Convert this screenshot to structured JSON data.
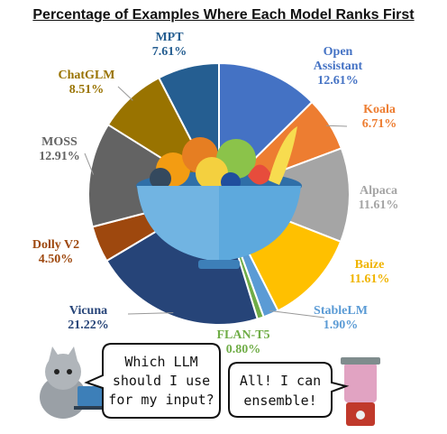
{
  "chart_data": {
    "type": "pie",
    "title": "Percentage of Examples Where Each Model Ranks First",
    "slices": [
      {
        "label": "Open Assistant",
        "label_lines": [
          "Open",
          "Assistant"
        ],
        "value": 12.61,
        "value_text": "12.61%",
        "color": "#4472C4",
        "label_color": "#4472C4"
      },
      {
        "label": "Koala",
        "label_lines": [
          "Koala"
        ],
        "value": 6.71,
        "value_text": "6.71%",
        "color": "#ED7D31",
        "label_color": "#ED7D31"
      },
      {
        "label": "Alpaca",
        "label_lines": [
          "Alpaca"
        ],
        "value": 11.61,
        "value_text": "11.61%",
        "color": "#A5A5A5",
        "label_color": "#A5A5A5"
      },
      {
        "label": "Baize",
        "label_lines": [
          "Baize"
        ],
        "value": 11.61,
        "value_text": "11.61%",
        "color": "#FFC000",
        "label_color": "#F0B400"
      },
      {
        "label": "StableLM",
        "label_lines": [
          "StableLM"
        ],
        "value": 1.9,
        "value_text": "1.90%",
        "color": "#5B9BD5",
        "label_color": "#5B9BD5"
      },
      {
        "label": "FLAN-T5",
        "label_lines": [
          "FLAN-T5"
        ],
        "value": 0.8,
        "value_text": "0.80%",
        "color": "#70AD47",
        "label_color": "#70AD47"
      },
      {
        "label": "Vicuna",
        "label_lines": [
          "Vicuna"
        ],
        "value": 21.22,
        "value_text": "21.22%",
        "color": "#264478",
        "label_color": "#264478"
      },
      {
        "label": "Dolly V2",
        "label_lines": [
          "Dolly V2"
        ],
        "value": 4.5,
        "value_text": "4.50%",
        "color": "#9E480E",
        "label_color": "#9E480E"
      },
      {
        "label": "MOSS",
        "label_lines": [
          "MOSS"
        ],
        "value": 12.91,
        "value_text": "12.91%",
        "color": "#636363",
        "label_color": "#636363"
      },
      {
        "label": "ChatGLM",
        "label_lines": [
          "ChatGLM"
        ],
        "value": 8.51,
        "value_text": "8.51%",
        "color": "#997300",
        "label_color": "#997300"
      },
      {
        "label": "MPT",
        "label_lines": [
          "MPT"
        ],
        "value": 7.61,
        "value_text": "7.61%",
        "color": "#255E91",
        "label_color": "#255E91"
      }
    ]
  },
  "bubbles": {
    "left": [
      "Which LLM",
      "should I use",
      "for my input?"
    ],
    "right": [
      "All! I can",
      "ensemble!"
    ]
  },
  "colors": {
    "bowl": "#5DA9DD",
    "bowl_dark": "#3D7FB8",
    "cat": "#9AA0A6",
    "blender": "#C0392B"
  }
}
